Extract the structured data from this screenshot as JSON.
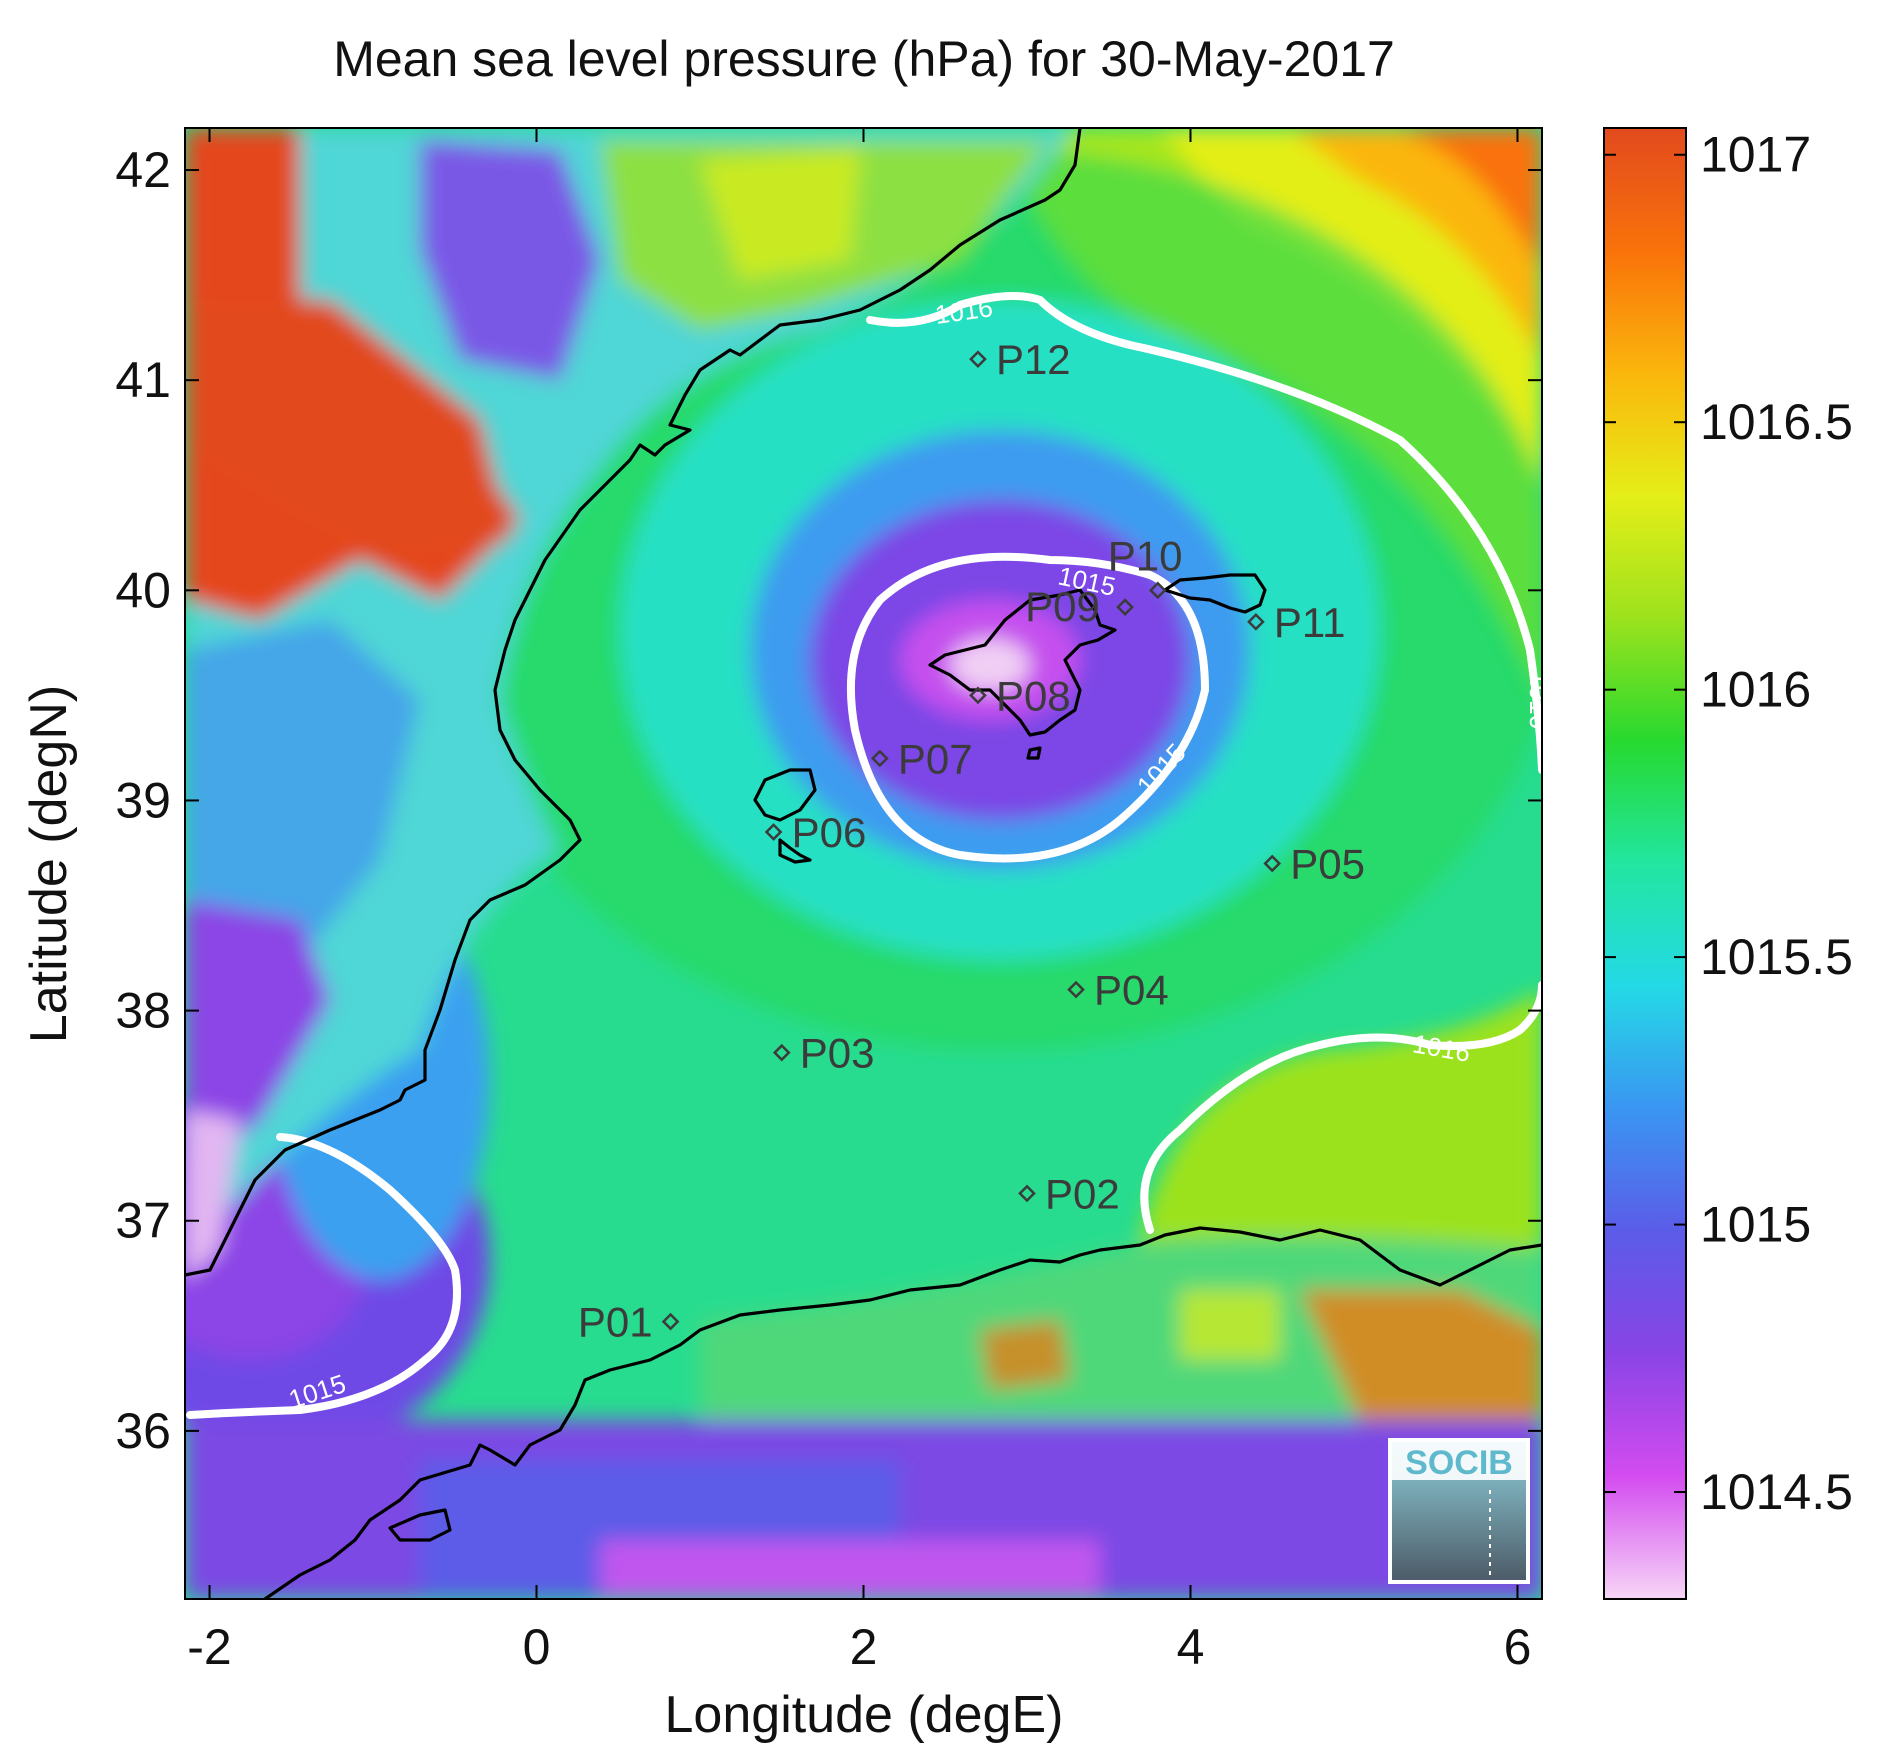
{
  "chart_data": {
    "type": "heatmap",
    "title": "Mean sea level pressure (hPa) for 30-May-2017",
    "xlabel": "Longitude (degE)",
    "ylabel": "Latitude (degN)",
    "xlim": [
      -2.15,
      6.15
    ],
    "ylim": [
      35.2,
      42.2
    ],
    "x_ticks": [
      -2,
      0,
      2,
      4,
      6
    ],
    "x_tick_labels": [
      "-2",
      "0",
      "2",
      "4",
      "6"
    ],
    "y_ticks": [
      36,
      37,
      38,
      39,
      40,
      41,
      42
    ],
    "y_tick_labels": [
      "36",
      "37",
      "38",
      "39",
      "40",
      "41",
      "42"
    ],
    "colorbar": {
      "range": [
        1014.3,
        1017.05
      ],
      "ticks": [
        1014.5,
        1015,
        1015.5,
        1016,
        1016.5,
        1017
      ],
      "tick_labels": [
        "1014.5",
        "1015",
        "1015.5",
        "1016",
        "1016.5",
        "1017"
      ],
      "colormap": [
        "#f7d6f7",
        "#d34cf0",
        "#8a44e6",
        "#5b5ce8",
        "#3a96f2",
        "#24d9e6",
        "#22e6a0",
        "#27d92f",
        "#9ce21d",
        "#e5ee18",
        "#fbb60c",
        "#f9720a",
        "#e24a1e"
      ]
    },
    "contours": [
      {
        "level": 1015,
        "label": "1015"
      },
      {
        "level": 1016,
        "label": "1016"
      }
    ],
    "stations": [
      {
        "name": "P01",
        "lon": 0.82,
        "lat": 36.52
      },
      {
        "name": "P02",
        "lon": 3.0,
        "lat": 37.13
      },
      {
        "name": "P03",
        "lon": 1.5,
        "lat": 37.8
      },
      {
        "name": "P04",
        "lon": 3.3,
        "lat": 38.1
      },
      {
        "name": "P05",
        "lon": 4.5,
        "lat": 38.7
      },
      {
        "name": "P06",
        "lon": 1.45,
        "lat": 38.85
      },
      {
        "name": "P07",
        "lon": 2.1,
        "lat": 39.2
      },
      {
        "name": "P08",
        "lon": 2.7,
        "lat": 39.5
      },
      {
        "name": "P09",
        "lon": 3.6,
        "lat": 39.92
      },
      {
        "name": "P10",
        "lon": 3.8,
        "lat": 40.0
      },
      {
        "name": "P11",
        "lon": 4.4,
        "lat": 39.85
      },
      {
        "name": "P12",
        "lon": 2.7,
        "lat": 41.1
      }
    ],
    "logo": "SOCIB"
  }
}
